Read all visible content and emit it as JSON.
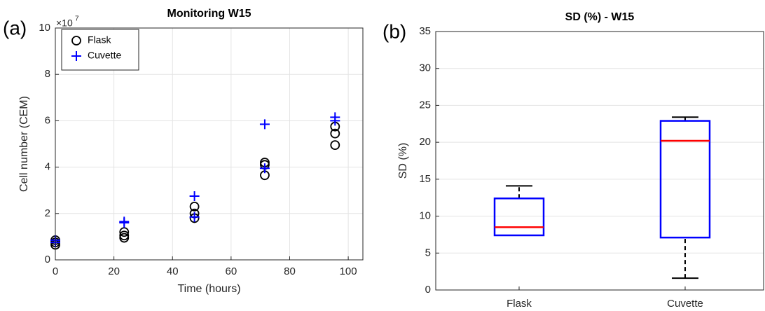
{
  "chart_data": [
    {
      "type": "scatter",
      "panel_label": "(a)",
      "title": "Monitoring W15",
      "x_label": "Time (hours)",
      "y_label": "Cell number (CEM)",
      "y_scale_label": {
        "base": "×10",
        "exponent": "7"
      },
      "xlim": [
        0,
        105
      ],
      "xticks": [
        0,
        20,
        40,
        60,
        80,
        100
      ],
      "ylim": [
        0,
        10
      ],
      "yticks": [
        0,
        2,
        4,
        6,
        8,
        10
      ],
      "grid": true,
      "legend": "upper left",
      "series": [
        {
          "name": "Flask",
          "color": "#000000",
          "marker": "circle",
          "x": [
            0,
            0,
            0,
            23.5,
            23.5,
            23.5,
            47.5,
            47.5,
            47.5,
            71.5,
            71.5,
            71.5,
            95.5,
            95.5,
            95.5
          ],
          "values": [
            0.65,
            0.75,
            0.85,
            0.95,
            1.05,
            1.2,
            1.8,
            2.0,
            2.3,
            3.65,
            4.1,
            4.2,
            4.95,
            5.45,
            5.75
          ]
        },
        {
          "name": "Cuvette",
          "color": "#0000ff",
          "marker": "plus",
          "x": [
            0,
            0,
            23.5,
            23.5,
            47.5,
            47.5,
            71.5,
            71.5,
            95.5,
            95.5
          ],
          "values": [
            0.75,
            0.85,
            1.6,
            1.65,
            1.85,
            2.75,
            3.95,
            5.85,
            6.0,
            6.15
          ]
        }
      ]
    },
    {
      "type": "box",
      "panel_label": "(b)",
      "title": "SD (%) - W15",
      "y_label": "SD (%)",
      "categories": [
        "Flask",
        "Cuvette"
      ],
      "ylim": [
        0,
        35
      ],
      "yticks": [
        0,
        5,
        10,
        15,
        20,
        25,
        30,
        35
      ],
      "grid": true,
      "box_color": "#0000ff",
      "median_color": "#ff0000",
      "whisker_color": "#000000",
      "boxes": [
        {
          "min": 7.4,
          "q1": 7.4,
          "median": 8.5,
          "q3": 12.4,
          "max": 14.1
        },
        {
          "min": 1.6,
          "q1": 7.1,
          "median": 20.2,
          "q3": 22.9,
          "max": 23.4
        }
      ]
    }
  ]
}
